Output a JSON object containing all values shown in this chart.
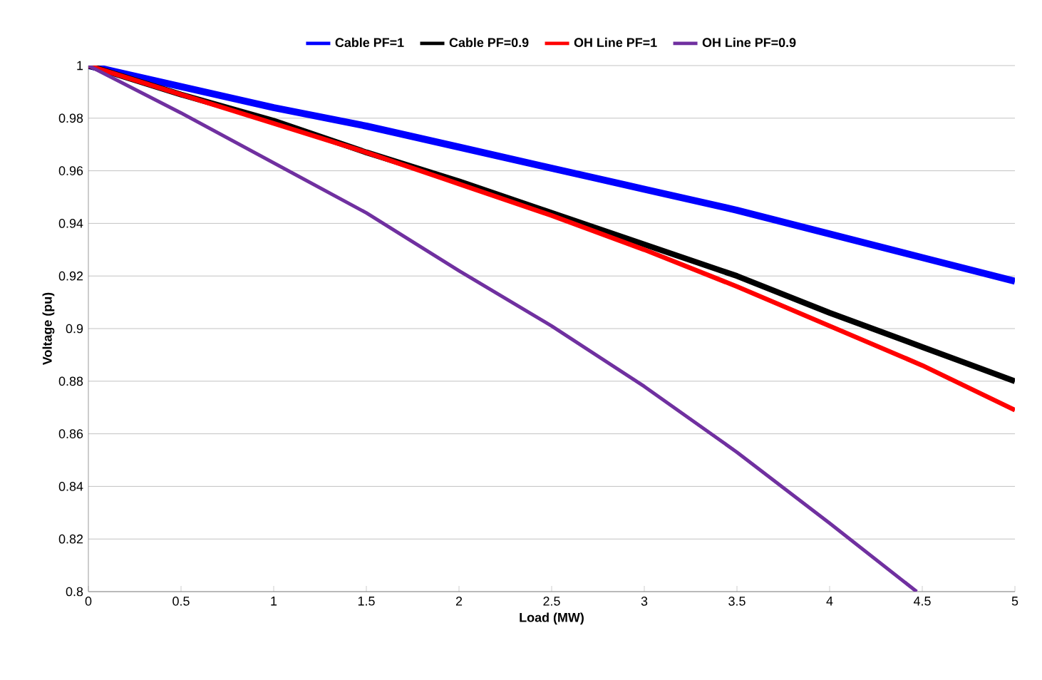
{
  "chart_data": {
    "type": "line",
    "xlabel": "Load (MW)",
    "ylabel": "Voltage (pu)",
    "x": [
      0,
      0.5,
      1,
      1.5,
      2,
      2.5,
      3,
      3.5,
      4,
      4.5,
      5
    ],
    "series": [
      {
        "name": "Cable PF=1",
        "color": "#0000ff",
        "values": [
          1,
          0.992,
          0.984,
          0.977,
          0.969,
          0.961,
          0.953,
          0.945,
          0.936,
          0.927,
          0.918
        ]
      },
      {
        "name": "Cable PF=0.9",
        "color": "#000000",
        "values": [
          1,
          0.989,
          0.979,
          0.967,
          0.956,
          0.944,
          0.932,
          0.92,
          0.906,
          0.893,
          0.88
        ]
      },
      {
        "name": "OH Line PF=1",
        "color": "#ff0000",
        "values": [
          1,
          0.989,
          0.978,
          0.967,
          0.955,
          0.943,
          0.93,
          0.916,
          0.901,
          0.886,
          0.869
        ]
      },
      {
        "name": "OH Line PF=0.9",
        "color": "#7030a0",
        "x": [
          0,
          0.5,
          1,
          1.5,
          2,
          2.5,
          3,
          3.5,
          4,
          4.47
        ],
        "values": [
          1,
          0.982,
          0.963,
          0.944,
          0.922,
          0.901,
          0.878,
          0.853,
          0.826,
          0.8
        ]
      }
    ],
    "xlim": [
      0,
      5
    ],
    "ylim": [
      0.8,
      1
    ],
    "xticks": [
      0,
      0.5,
      1,
      1.5,
      2,
      2.5,
      3,
      3.5,
      4,
      4.5,
      5
    ],
    "yticks": [
      0.8,
      0.82,
      0.84,
      0.86,
      0.88,
      0.9,
      0.92,
      0.94,
      0.96,
      0.98,
      1
    ],
    "grid": "y",
    "legend": "top",
    "marker": "none",
    "line_style": "solid"
  }
}
